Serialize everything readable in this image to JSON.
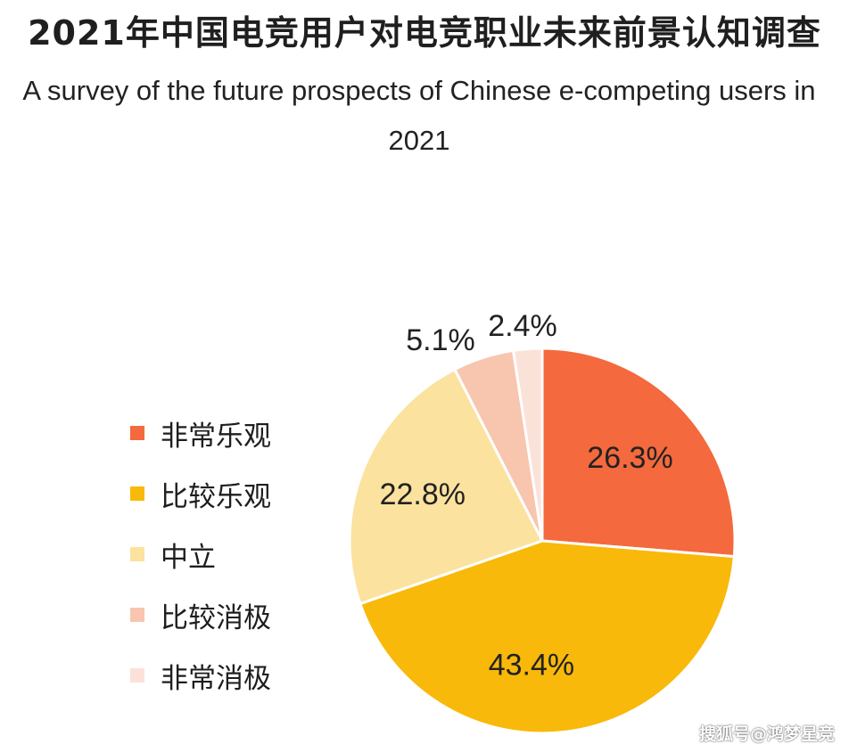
{
  "chart_data": {
    "type": "pie",
    "title": "2021年中国电竞用户对电竞职业未来前景认知调查",
    "subtitle": "A survey of the future prospects of Chinese e-competing users in 2021",
    "legend_position": "left",
    "unit": "%",
    "slices": [
      {
        "label": "非常乐观",
        "value": 26.3,
        "display": "26.3%",
        "color": "#F4693D"
      },
      {
        "label": "比较乐观",
        "value": 43.4,
        "display": "43.4%",
        "color": "#F9B90A"
      },
      {
        "label": "中立",
        "value": 22.8,
        "display": "22.8%",
        "color": "#FBE29E"
      },
      {
        "label": "比较消极",
        "value": 5.1,
        "display": "5.1%",
        "color": "#F8C5AF"
      },
      {
        "label": "非常消极",
        "value": 2.4,
        "display": "2.4%",
        "color": "#FBE2D8"
      }
    ]
  },
  "watermark": "搜狐号@鸿梦星竞"
}
